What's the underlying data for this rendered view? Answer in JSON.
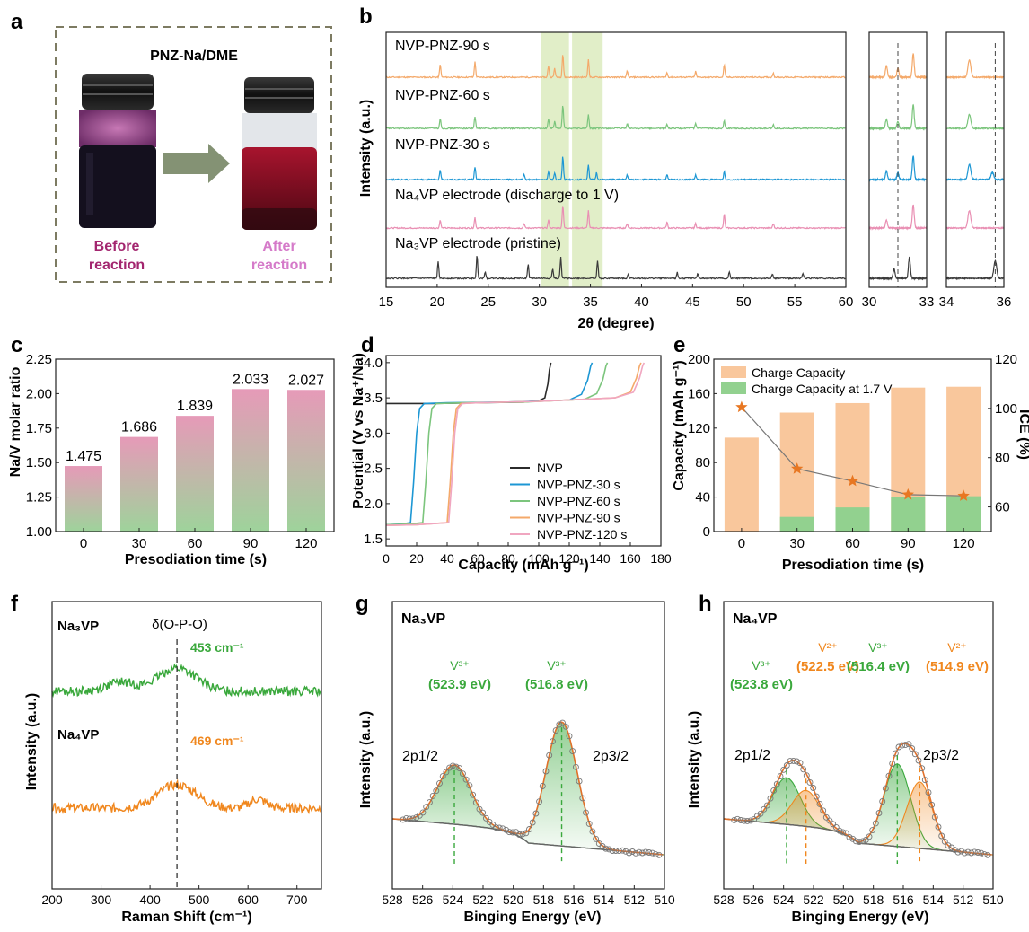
{
  "panels": {
    "a": {
      "letter": "a",
      "title": "PNZ-Na/DME",
      "left_caption": [
        "Before",
        "reaction"
      ],
      "right_caption": [
        "After",
        "reaction"
      ],
      "colors": {
        "left_caption": "#a3266f",
        "right_caption": "#d57ac9",
        "arrow": "#6f7f5c",
        "border": "#7d7b62"
      }
    },
    "b": {
      "letter": "b",
      "ylabel": "Intensity (a.u.)",
      "xlabel": "2θ (degree)"
    }
  },
  "chart_data": [
    {
      "id": "b",
      "type": "line",
      "title": "",
      "xlabel": "2θ (degree)",
      "ylabel": "Intensity (a.u.)",
      "xlim": [
        15,
        60
      ],
      "xticks": [
        15,
        20,
        25,
        30,
        35,
        40,
        45,
        50,
        55,
        60
      ],
      "insets": [
        {
          "xlim": [
            30,
            33
          ],
          "xticks": [
            30,
            33
          ],
          "dashed_x": 31.5
        },
        {
          "xlim": [
            34,
            36
          ],
          "xticks": [
            34,
            36
          ],
          "dashed_x": 35.7
        }
      ],
      "highlight_ranges": [
        [
          30.2,
          32.9
        ],
        [
          33.2,
          36.2
        ]
      ],
      "series": [
        {
          "name": "NVP-PNZ-90 s",
          "color": "#f4a96a",
          "peaks": [
            [
              20.3,
              0.55
            ],
            [
              23.7,
              0.65
            ],
            [
              30.9,
              0.5
            ],
            [
              31.5,
              0.4
            ],
            [
              32.3,
              1.0
            ],
            [
              34.8,
              0.75
            ],
            [
              38.6,
              0.25
            ],
            [
              42.5,
              0.2
            ],
            [
              45.3,
              0.25
            ],
            [
              48.1,
              0.55
            ],
            [
              52.9,
              0.2
            ]
          ]
        },
        {
          "name": "NVP-PNZ-60 s",
          "color": "#7cc57d",
          "peaks": [
            [
              20.3,
              0.45
            ],
            [
              23.7,
              0.5
            ],
            [
              30.9,
              0.4
            ],
            [
              31.5,
              0.3
            ],
            [
              32.3,
              1.0
            ],
            [
              34.8,
              0.6
            ],
            [
              38.6,
              0.2
            ],
            [
              42.5,
              0.18
            ],
            [
              45.3,
              0.2
            ],
            [
              48.1,
              0.35
            ],
            [
              52.9,
              0.15
            ]
          ]
        },
        {
          "name": "NVP-PNZ-30 s",
          "color": "#1d97d4",
          "peaks": [
            [
              20.3,
              0.4
            ],
            [
              23.7,
              0.55
            ],
            [
              28.5,
              0.2
            ],
            [
              30.9,
              0.35
            ],
            [
              31.5,
              0.3
            ],
            [
              32.3,
              1.0
            ],
            [
              34.8,
              0.65
            ],
            [
              35.6,
              0.3
            ],
            [
              38.6,
              0.2
            ],
            [
              42.5,
              0.2
            ],
            [
              45.3,
              0.2
            ],
            [
              48.1,
              0.35
            ]
          ]
        },
        {
          "name": "Na₄VP electrode (discharge to 1 V)",
          "color": "#e98fb3",
          "peaks": [
            [
              20.3,
              0.35
            ],
            [
              23.7,
              0.45
            ],
            [
              28.5,
              0.2
            ],
            [
              30.9,
              0.35
            ],
            [
              32.3,
              1.0
            ],
            [
              34.8,
              0.75
            ],
            [
              38.6,
              0.2
            ],
            [
              42.5,
              0.25
            ],
            [
              45.3,
              0.2
            ],
            [
              48.1,
              0.6
            ],
            [
              52.9,
              0.2
            ]
          ]
        },
        {
          "name": "Na₃VP electrode (pristine)",
          "color": "#3a3a3a",
          "peaks": [
            [
              20.1,
              0.75
            ],
            [
              23.9,
              1.0
            ],
            [
              24.7,
              0.3
            ],
            [
              28.9,
              0.6
            ],
            [
              31.3,
              0.4
            ],
            [
              32.1,
              0.9
            ],
            [
              35.7,
              0.75
            ],
            [
              38.7,
              0.2
            ],
            [
              43.5,
              0.25
            ],
            [
              45.5,
              0.2
            ],
            [
              48.6,
              0.3
            ],
            [
              52.8,
              0.2
            ],
            [
              55.8,
              0.2
            ]
          ]
        }
      ]
    },
    {
      "id": "c",
      "type": "bar",
      "title": "",
      "xlabel": "Presodiation time (s)",
      "ylabel": "Na/V molar ratio",
      "categories": [
        "0",
        "30",
        "60",
        "90",
        "120"
      ],
      "values": [
        1.475,
        1.686,
        1.839,
        2.033,
        2.027
      ],
      "value_labels": [
        "1.475",
        "1.686",
        "1.839",
        "2.033",
        "2.027"
      ],
      "ylim": [
        1.0,
        2.25
      ],
      "yticks": [
        "1.00",
        "1.25",
        "1.50",
        "1.75",
        "2.00",
        "2.25"
      ],
      "colors": {
        "top": "#e69ab8",
        "bottom": "#9ed39b"
      }
    },
    {
      "id": "d",
      "type": "line",
      "title": "",
      "xlabel": "Capacity (mAh g⁻¹)",
      "ylabel": "Potential (V vs Na⁺/Na)",
      "xlim": [
        0,
        180
      ],
      "xticks": [
        0,
        20,
        40,
        60,
        80,
        100,
        120,
        140,
        160,
        180
      ],
      "ylim": [
        1.4,
        4.1
      ],
      "yticks": [
        "1.5",
        "2.0",
        "2.5",
        "3.0",
        "3.5",
        "4.0"
      ],
      "legend": "lower-right",
      "series": [
        {
          "name": "NVP",
          "color": "#2b2b2b",
          "x": [
            0,
            30,
            60,
            90,
            100,
            104,
            106,
            107,
            108
          ],
          "y": [
            3.42,
            3.42,
            3.43,
            3.44,
            3.46,
            3.5,
            3.7,
            3.9,
            4.0
          ]
        },
        {
          "name": "NVP-PNZ-30 s",
          "color": "#1d97d4",
          "x": [
            0,
            10,
            16,
            18,
            20,
            22,
            25,
            40,
            80,
            120,
            128,
            132,
            134,
            135
          ],
          "y": [
            1.7,
            1.71,
            1.73,
            2.3,
            3.0,
            3.35,
            3.42,
            3.43,
            3.44,
            3.47,
            3.55,
            3.75,
            3.95,
            4.0
          ]
        },
        {
          "name": "NVP-PNZ-60 s",
          "color": "#7cc57d",
          "x": [
            0,
            15,
            24,
            26,
            28,
            30,
            33,
            50,
            90,
            130,
            138,
            142,
            144,
            145
          ],
          "y": [
            1.7,
            1.71,
            1.73,
            2.3,
            3.0,
            3.35,
            3.42,
            3.43,
            3.44,
            3.48,
            3.56,
            3.76,
            3.95,
            4.0
          ]
        },
        {
          "name": "NVP-PNZ-90 s",
          "color": "#f4a96a",
          "x": [
            0,
            20,
            40,
            42,
            44,
            46,
            49,
            60,
            100,
            150,
            160,
            164,
            166,
            167
          ],
          "y": [
            1.69,
            1.7,
            1.73,
            2.3,
            3.0,
            3.35,
            3.42,
            3.43,
            3.45,
            3.5,
            3.58,
            3.78,
            3.95,
            4.0
          ]
        },
        {
          "name": "NVP-PNZ-120 s",
          "color": "#f0a6c0",
          "x": [
            0,
            20,
            41,
            43,
            45,
            47,
            50,
            60,
            100,
            150,
            162,
            166,
            168,
            169
          ],
          "y": [
            1.69,
            1.7,
            1.73,
            2.3,
            3.0,
            3.35,
            3.42,
            3.43,
            3.45,
            3.5,
            3.58,
            3.78,
            3.95,
            4.0
          ]
        }
      ]
    },
    {
      "id": "e",
      "type": "bar",
      "title": "",
      "xlabel": "Presodiation time (s)",
      "ylabel": "Capacity (mAh g⁻¹)",
      "y2label": "ICE (%)",
      "categories": [
        "0",
        "30",
        "60",
        "90",
        "120"
      ],
      "ylim": [
        0,
        200
      ],
      "yticks": [
        0,
        40,
        80,
        120,
        160,
        200
      ],
      "y2lim": [
        50,
        120
      ],
      "y2ticks": [
        60,
        80,
        100,
        120
      ],
      "legend": "top-left",
      "series": [
        {
          "name": "Charge Capacity",
          "color": "#f9c79c",
          "values": [
            109,
            138,
            149,
            167,
            168
          ]
        },
        {
          "name": "Charge Capacity at 1.7 V",
          "color": "#92d18f",
          "values": [
            0,
            17,
            28,
            40,
            41
          ]
        },
        {
          "name": "ICE",
          "axis": "right",
          "color": "#e87722",
          "marker": "star",
          "values": [
            100.5,
            75.5,
            70.5,
            65,
            64.5
          ]
        }
      ]
    },
    {
      "id": "f",
      "type": "line",
      "title": "",
      "xlabel": "Raman Shift (cm⁻¹)",
      "ylabel": "Intensity (a.u.)",
      "xlim": [
        200,
        750
      ],
      "xticks": [
        200,
        300,
        400,
        500,
        600,
        700
      ],
      "top_annotation": "δ(O-P-O)",
      "dashed_x": 455,
      "series": [
        {
          "name": "Na₃VP",
          "color": "#3aa83c",
          "peak_label": "453 cm⁻¹"
        },
        {
          "name": "Na₄VP",
          "color": "#f0871e",
          "peak_label": "469 cm⁻¹"
        }
      ]
    },
    {
      "id": "g",
      "type": "line",
      "title": "",
      "sample": "Na₃VP",
      "xlabel": "Binging Energy (eV)",
      "ylabel": "Intensity (a.u.)",
      "xlim": [
        528,
        510
      ],
      "xticks": [
        528,
        526,
        524,
        522,
        520,
        518,
        516,
        514,
        512,
        510
      ],
      "peak_labels": [
        {
          "species": "V³⁺",
          "energy": "(523.9 eV)",
          "x": 523.9
        },
        {
          "species": "V³⁺",
          "energy": "(516.8 eV)",
          "x": 516.8
        }
      ],
      "orbital_labels": [
        "2p1/2",
        "2p3/2"
      ]
    },
    {
      "id": "h",
      "type": "line",
      "title": "",
      "sample": "Na₄VP",
      "xlabel": "Binging Energy (eV)",
      "ylabel": "Intensity (a.u.)",
      "xlim": [
        528,
        510
      ],
      "xticks": [
        528,
        526,
        524,
        522,
        520,
        518,
        516,
        514,
        512,
        510
      ],
      "peak_labels": [
        {
          "species": "V³⁺",
          "energy": "(523.8 eV)",
          "x": 523.8,
          "color": "#3aa83c"
        },
        {
          "species": "V²⁺",
          "energy": "(522.5 eV)",
          "x": 522.5,
          "color": "#f0871e"
        },
        {
          "species": "V³⁺",
          "energy": "(516.4 eV)",
          "x": 516.4,
          "color": "#3aa83c"
        },
        {
          "species": "V²⁺",
          "energy": "(514.9 eV)",
          "x": 514.9,
          "color": "#f0871e"
        }
      ],
      "orbital_labels": [
        "2p1/2",
        "2p3/2"
      ]
    }
  ]
}
